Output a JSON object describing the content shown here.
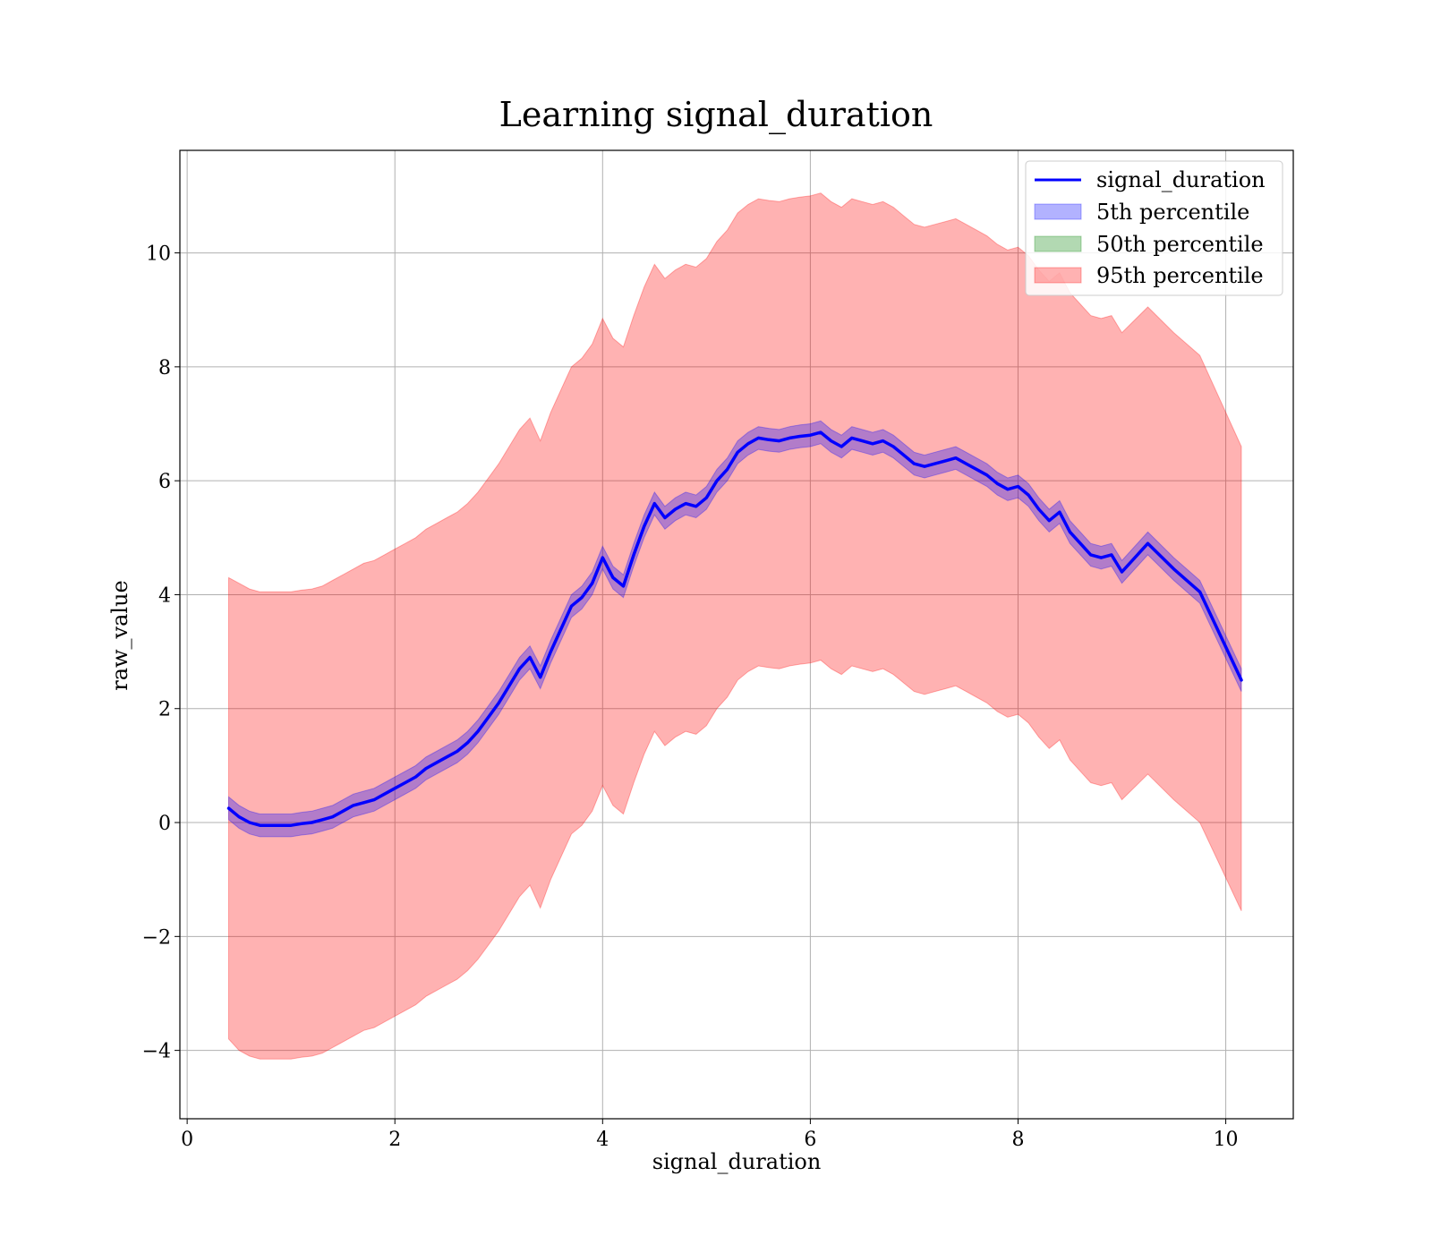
{
  "chart_data": {
    "type": "line",
    "title": "Learning signal_duration",
    "xlabel": "signal_duration",
    "ylabel": "raw_value",
    "xlim": [
      -0.07,
      10.65
    ],
    "ylim": [
      -5.2,
      11.8
    ],
    "xticks": [
      0,
      2,
      4,
      6,
      8,
      10
    ],
    "yticks": [
      -4,
      -2,
      0,
      2,
      4,
      6,
      8,
      10
    ],
    "xtick_labels": [
      "0",
      "2",
      "4",
      "6",
      "8",
      "10"
    ],
    "ytick_labels": [
      "−4",
      "−2",
      "0",
      "2",
      "4",
      "6",
      "8",
      "10"
    ],
    "grid": true,
    "legend_position": "top-right",
    "colors": {
      "line": "#0000ff",
      "p5_fill": "#0000ff",
      "p50_fill": "#008000",
      "p95_fill": "#ff0000"
    },
    "legend": [
      {
        "label": "signal_duration",
        "kind": "line",
        "color": "#0000ff"
      },
      {
        "label": "5th percentile",
        "kind": "patch",
        "color": "#0000ff"
      },
      {
        "label": "50th percentile",
        "kind": "patch",
        "color": "#008000"
      },
      {
        "label": "95th percentile",
        "kind": "patch",
        "color": "#ff0000"
      }
    ],
    "series": [
      {
        "name": "signal_duration",
        "x": [
          0.4,
          0.5,
          0.6,
          0.7,
          0.8,
          0.9,
          1.0,
          1.1,
          1.2,
          1.3,
          1.4,
          1.5,
          1.6,
          1.7,
          1.8,
          1.9,
          2.0,
          2.1,
          2.2,
          2.3,
          2.4,
          2.5,
          2.6,
          2.7,
          2.8,
          2.9,
          3.0,
          3.1,
          3.2,
          3.3,
          3.4,
          3.5,
          3.6,
          3.7,
          3.8,
          3.9,
          4.0,
          4.1,
          4.2,
          4.3,
          4.4,
          4.5,
          4.6,
          4.7,
          4.8,
          4.9,
          5.0,
          5.1,
          5.2,
          5.3,
          5.4,
          5.5,
          5.6,
          5.7,
          5.8,
          5.9,
          6.0,
          6.1,
          6.2,
          6.3,
          6.4,
          6.5,
          6.6,
          6.7,
          6.8,
          6.9,
          7.0,
          7.1,
          7.2,
          7.3,
          7.4,
          7.5,
          7.6,
          7.7,
          7.8,
          7.9,
          8.0,
          8.1,
          8.2,
          8.3,
          8.4,
          8.5,
          8.6,
          8.7,
          8.8,
          8.9,
          9.0,
          9.25,
          9.5,
          9.75,
          10.15
        ],
        "y": [
          0.25,
          0.1,
          0.0,
          -0.05,
          -0.05,
          -0.05,
          -0.05,
          -0.02,
          0.0,
          0.05,
          0.1,
          0.2,
          0.3,
          0.35,
          0.4,
          0.5,
          0.6,
          0.7,
          0.8,
          0.95,
          1.05,
          1.15,
          1.25,
          1.4,
          1.6,
          1.85,
          2.1,
          2.4,
          2.7,
          2.9,
          2.55,
          3.0,
          3.4,
          3.8,
          3.95,
          4.2,
          4.65,
          4.3,
          4.15,
          4.7,
          5.2,
          5.6,
          5.35,
          5.5,
          5.6,
          5.55,
          5.7,
          6.0,
          6.2,
          6.5,
          6.65,
          6.75,
          6.72,
          6.7,
          6.75,
          6.78,
          6.8,
          6.85,
          6.7,
          6.6,
          6.75,
          6.7,
          6.65,
          6.7,
          6.6,
          6.45,
          6.3,
          6.25,
          6.3,
          6.35,
          6.4,
          6.3,
          6.2,
          6.1,
          5.95,
          5.85,
          5.9,
          5.75,
          5.5,
          5.3,
          5.45,
          5.1,
          4.9,
          4.7,
          4.65,
          4.7,
          4.4,
          4.9,
          4.45,
          4.05,
          2.5
        ]
      },
      {
        "name": "5th percentile",
        "x": [
          0.4,
          0.5,
          0.6,
          0.7,
          0.8,
          0.9,
          1.0,
          1.1,
          1.2,
          1.3,
          1.4,
          1.5,
          1.6,
          1.7,
          1.8,
          1.9,
          2.0,
          2.1,
          2.2,
          2.3,
          2.4,
          2.5,
          2.6,
          2.7,
          2.8,
          2.9,
          3.0,
          3.1,
          3.2,
          3.3,
          3.4,
          3.5,
          3.6,
          3.7,
          3.8,
          3.9,
          4.0,
          4.1,
          4.2,
          4.3,
          4.4,
          4.5,
          4.6,
          4.7,
          4.8,
          4.9,
          5.0,
          5.1,
          5.2,
          5.3,
          5.4,
          5.5,
          5.6,
          5.7,
          5.8,
          5.9,
          6.0,
          6.1,
          6.2,
          6.3,
          6.4,
          6.5,
          6.6,
          6.7,
          6.8,
          6.9,
          7.0,
          7.1,
          7.2,
          7.3,
          7.4,
          7.5,
          7.6,
          7.7,
          7.8,
          7.9,
          8.0,
          8.1,
          8.2,
          8.3,
          8.4,
          8.5,
          8.6,
          8.7,
          8.8,
          8.9,
          9.0,
          9.25,
          9.5,
          9.75,
          10.15
        ],
        "lower": [
          0.05,
          -0.1,
          -0.2,
          -0.25,
          -0.25,
          -0.25,
          -0.25,
          -0.22,
          -0.2,
          -0.15,
          -0.1,
          0.0,
          0.1,
          0.15,
          0.2,
          0.3,
          0.4,
          0.5,
          0.6,
          0.75,
          0.85,
          0.95,
          1.05,
          1.2,
          1.4,
          1.65,
          1.9,
          2.2,
          2.5,
          2.7,
          2.35,
          2.8,
          3.2,
          3.6,
          3.75,
          4.0,
          4.45,
          4.1,
          3.95,
          4.5,
          5.0,
          5.4,
          5.15,
          5.3,
          5.4,
          5.35,
          5.5,
          5.8,
          6.0,
          6.3,
          6.45,
          6.55,
          6.52,
          6.5,
          6.55,
          6.58,
          6.6,
          6.65,
          6.5,
          6.4,
          6.55,
          6.5,
          6.45,
          6.5,
          6.4,
          6.25,
          6.1,
          6.05,
          6.1,
          6.15,
          6.2,
          6.1,
          6.0,
          5.9,
          5.75,
          5.65,
          5.7,
          5.55,
          5.3,
          5.1,
          5.25,
          4.9,
          4.7,
          4.5,
          4.45,
          4.5,
          4.2,
          4.7,
          4.25,
          3.85,
          2.3
        ],
        "upper": [
          0.45,
          0.3,
          0.2,
          0.15,
          0.15,
          0.15,
          0.15,
          0.18,
          0.2,
          0.25,
          0.3,
          0.4,
          0.5,
          0.55,
          0.6,
          0.7,
          0.8,
          0.9,
          1.0,
          1.15,
          1.25,
          1.35,
          1.45,
          1.6,
          1.8,
          2.05,
          2.3,
          2.6,
          2.9,
          3.1,
          2.75,
          3.2,
          3.6,
          4.0,
          4.15,
          4.4,
          4.85,
          4.5,
          4.35,
          4.9,
          5.4,
          5.8,
          5.55,
          5.7,
          5.8,
          5.75,
          5.9,
          6.2,
          6.4,
          6.7,
          6.85,
          6.95,
          6.92,
          6.9,
          6.95,
          6.98,
          7.0,
          7.05,
          6.9,
          6.8,
          6.95,
          6.9,
          6.85,
          6.9,
          6.8,
          6.65,
          6.5,
          6.45,
          6.5,
          6.55,
          6.6,
          6.5,
          6.4,
          6.3,
          6.15,
          6.05,
          6.1,
          5.95,
          5.7,
          5.5,
          5.65,
          5.3,
          5.1,
          4.9,
          4.85,
          4.9,
          4.6,
          5.1,
          4.65,
          4.25,
          2.7
        ]
      },
      {
        "name": "95th percentile",
        "x": [
          0.4,
          0.5,
          0.6,
          0.7,
          0.8,
          0.9,
          1.0,
          1.1,
          1.2,
          1.3,
          1.4,
          1.5,
          1.6,
          1.7,
          1.8,
          1.9,
          2.0,
          2.1,
          2.2,
          2.3,
          2.4,
          2.5,
          2.6,
          2.7,
          2.8,
          2.9,
          3.0,
          3.1,
          3.2,
          3.3,
          3.4,
          3.5,
          3.6,
          3.7,
          3.8,
          3.9,
          4.0,
          4.1,
          4.2,
          4.3,
          4.4,
          4.5,
          4.6,
          4.7,
          4.8,
          4.9,
          5.0,
          5.1,
          5.2,
          5.3,
          5.4,
          5.5,
          5.6,
          5.7,
          5.8,
          5.9,
          6.0,
          6.1,
          6.2,
          6.3,
          6.4,
          6.5,
          6.6,
          6.7,
          6.8,
          6.9,
          7.0,
          7.1,
          7.2,
          7.3,
          7.4,
          7.5,
          7.6,
          7.7,
          7.8,
          7.9,
          8.0,
          8.1,
          8.2,
          8.3,
          8.4,
          8.5,
          8.6,
          8.7,
          8.8,
          8.9,
          9.0,
          9.25,
          9.5,
          9.75,
          10.15
        ],
        "lower": [
          -3.8,
          -4.0,
          -4.1,
          -4.15,
          -4.15,
          -4.15,
          -4.15,
          -4.12,
          -4.1,
          -4.05,
          -3.95,
          -3.85,
          -3.75,
          -3.65,
          -3.6,
          -3.5,
          -3.4,
          -3.3,
          -3.2,
          -3.05,
          -2.95,
          -2.85,
          -2.75,
          -2.6,
          -2.4,
          -2.15,
          -1.9,
          -1.6,
          -1.3,
          -1.1,
          -1.5,
          -1.0,
          -0.6,
          -0.2,
          -0.05,
          0.2,
          0.65,
          0.3,
          0.15,
          0.7,
          1.2,
          1.6,
          1.35,
          1.5,
          1.6,
          1.55,
          1.7,
          2.0,
          2.2,
          2.5,
          2.65,
          2.75,
          2.72,
          2.7,
          2.75,
          2.78,
          2.8,
          2.85,
          2.7,
          2.6,
          2.75,
          2.7,
          2.65,
          2.7,
          2.6,
          2.45,
          2.3,
          2.25,
          2.3,
          2.35,
          2.4,
          2.3,
          2.2,
          2.1,
          1.95,
          1.85,
          1.9,
          1.75,
          1.5,
          1.3,
          1.45,
          1.1,
          0.9,
          0.7,
          0.65,
          0.7,
          0.4,
          0.85,
          0.4,
          0.0,
          -1.55
        ],
        "upper": [
          4.3,
          4.2,
          4.1,
          4.05,
          4.05,
          4.05,
          4.05,
          4.08,
          4.1,
          4.15,
          4.25,
          4.35,
          4.45,
          4.55,
          4.6,
          4.7,
          4.8,
          4.9,
          5.0,
          5.15,
          5.25,
          5.35,
          5.45,
          5.6,
          5.8,
          6.05,
          6.3,
          6.6,
          6.9,
          7.1,
          6.7,
          7.2,
          7.6,
          8.0,
          8.15,
          8.4,
          8.85,
          8.5,
          8.35,
          8.9,
          9.4,
          9.8,
          9.55,
          9.7,
          9.8,
          9.75,
          9.9,
          10.2,
          10.4,
          10.7,
          10.85,
          10.95,
          10.92,
          10.9,
          10.95,
          10.98,
          11.0,
          11.05,
          10.9,
          10.8,
          10.95,
          10.9,
          10.85,
          10.9,
          10.8,
          10.65,
          10.5,
          10.45,
          10.5,
          10.55,
          10.6,
          10.5,
          10.4,
          10.3,
          10.15,
          10.05,
          10.1,
          9.95,
          9.7,
          9.5,
          9.65,
          9.3,
          9.1,
          8.9,
          8.85,
          8.9,
          8.6,
          9.05,
          8.6,
          8.2,
          6.6
        ]
      }
    ]
  }
}
